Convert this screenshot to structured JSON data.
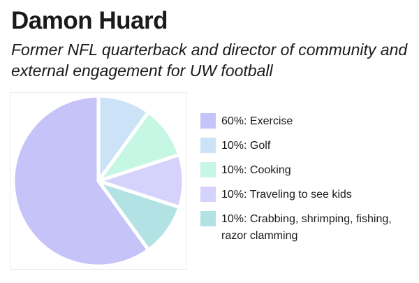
{
  "header": {
    "title": "Damon Huard",
    "subtitle": "Former NFL quarterback and director of community and external engagement for UW football"
  },
  "chart_data": {
    "type": "pie",
    "legend_position": "right",
    "categories": [
      "Exercise",
      "Golf",
      "Cooking",
      "Traveling to see kids",
      "Crabbing, shrimping, fishing, razor clamming"
    ],
    "values": [
      60,
      10,
      10,
      10,
      10
    ],
    "labels": [
      "60%: Exercise",
      "10%: Golf",
      "10%: Cooking",
      "10%: Traveling to see kids",
      "10%: Crabbing, shrimping, fishing, razor clamming"
    ],
    "colors": [
      "#c5c3f7",
      "#cce3f7",
      "#c6f6e4",
      "#d5d3fb",
      "#b3e2e4"
    ]
  }
}
